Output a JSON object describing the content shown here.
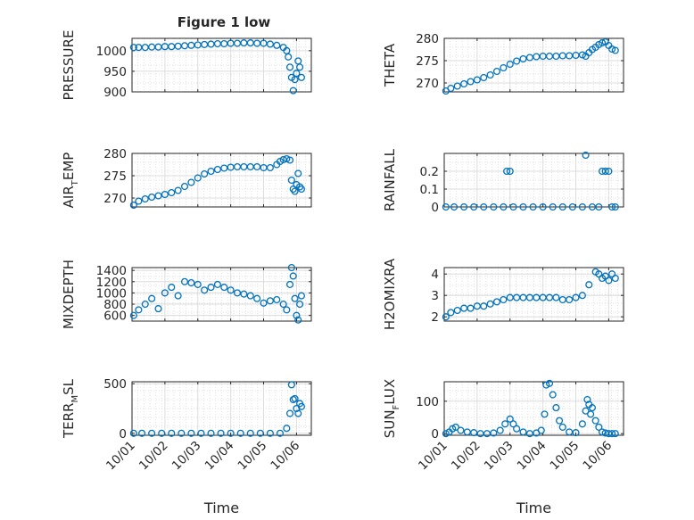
{
  "figure": {
    "title": "Figure 1 low",
    "marker_color": "#0072BD"
  },
  "chart_data": [
    {
      "type": "scatter",
      "ylabel_parts": [
        "PRESSURE"
      ],
      "ylim": [
        900,
        1030
      ],
      "yticks": [
        900,
        950,
        1000
      ],
      "title": "Figure 1 low",
      "xlabel": "",
      "grid": true,
      "x": [
        0.05,
        0.2,
        0.4,
        0.6,
        0.8,
        1.0,
        1.2,
        1.4,
        1.6,
        1.8,
        2.0,
        2.2,
        2.4,
        2.6,
        2.8,
        3.0,
        3.2,
        3.4,
        3.6,
        3.8,
        4.0,
        4.2,
        4.4,
        4.6,
        4.7,
        4.75,
        4.8,
        4.85,
        4.9,
        4.95,
        5.0,
        5.05,
        5.1,
        5.15
      ],
      "y": [
        1008,
        1008,
        1008,
        1009,
        1009,
        1010,
        1010,
        1011,
        1012,
        1013,
        1014,
        1015,
        1016,
        1017,
        1017,
        1018,
        1018,
        1019,
        1019,
        1018,
        1018,
        1016,
        1013,
        1008,
        1000,
        985,
        960,
        935,
        903,
        930,
        945,
        975,
        960,
        935
      ]
    },
    {
      "type": "scatter",
      "ylabel_parts": [
        "THETA"
      ],
      "ylim": [
        268,
        280
      ],
      "yticks": [
        270,
        275,
        280
      ],
      "xlabel": "",
      "grid": true,
      "x": [
        0.05,
        0.2,
        0.4,
        0.6,
        0.8,
        1.0,
        1.2,
        1.4,
        1.6,
        1.8,
        2.0,
        2.2,
        2.4,
        2.6,
        2.8,
        3.0,
        3.2,
        3.4,
        3.6,
        3.8,
        4.0,
        4.2,
        4.3,
        4.4,
        4.5,
        4.6,
        4.7,
        4.8,
        4.9,
        5.0,
        5.1,
        5.2
      ],
      "y": [
        268.2,
        268.8,
        269.3,
        269.8,
        270.3,
        270.7,
        271.2,
        271.8,
        272.6,
        273.4,
        274.2,
        274.9,
        275.4,
        275.7,
        275.9,
        276.0,
        276.0,
        276.0,
        276.1,
        276.1,
        276.2,
        276.3,
        276.0,
        276.8,
        277.5,
        278.0,
        278.6,
        279.0,
        279.2,
        278.4,
        277.6,
        277.3
      ]
    },
    {
      "type": "scatter",
      "ylabel_parts": [
        "AIR",
        "T",
        "EMP"
      ],
      "ylim": [
        268,
        280
      ],
      "yticks": [
        270,
        275,
        280
      ],
      "xlabel": "",
      "grid": true,
      "x": [
        0.05,
        0.2,
        0.4,
        0.6,
        0.8,
        1.0,
        1.2,
        1.4,
        1.6,
        1.8,
        2.0,
        2.2,
        2.4,
        2.6,
        2.8,
        3.0,
        3.2,
        3.4,
        3.6,
        3.8,
        4.0,
        4.2,
        4.4,
        4.5,
        4.6,
        4.7,
        4.8,
        4.85,
        4.9,
        4.95,
        5.0,
        5.05,
        5.1,
        5.15
      ],
      "y": [
        268.4,
        269.3,
        269.8,
        270.2,
        270.5,
        270.8,
        271.2,
        271.7,
        272.6,
        273.5,
        274.5,
        275.4,
        276.0,
        276.4,
        276.7,
        276.9,
        277.0,
        277.0,
        277.0,
        277.0,
        276.8,
        276.8,
        277.5,
        278.2,
        278.6,
        278.8,
        278.5,
        274.0,
        272.0,
        271.5,
        273.0,
        275.5,
        272.5,
        272.0
      ]
    },
    {
      "type": "scatter",
      "ylabel_parts": [
        "RAINFALL"
      ],
      "ylim": [
        0,
        0.3
      ],
      "yticks": [
        0,
        0.1,
        0.2
      ],
      "xlabel": "",
      "grid": true,
      "x": [
        0.05,
        0.3,
        0.6,
        0.9,
        1.2,
        1.5,
        1.8,
        1.9,
        2.0,
        2.1,
        2.4,
        2.7,
        3.0,
        3.3,
        3.6,
        3.9,
        4.2,
        4.3,
        4.5,
        4.7,
        4.8,
        4.9,
        5.0,
        5.1,
        5.2
      ],
      "y": [
        0,
        0,
        0,
        0,
        0,
        0,
        0,
        0.2,
        0.2,
        0,
        0,
        0,
        0,
        0,
        0,
        0,
        0,
        0.29,
        0,
        0,
        0.2,
        0.2,
        0.2,
        0,
        0
      ]
    },
    {
      "type": "scatter",
      "ylabel_parts": [
        "MIXDEPTH"
      ],
      "ylim": [
        500,
        1450
      ],
      "yticks": [
        600,
        800,
        1000,
        1200,
        1400
      ],
      "xlabel": "",
      "grid": true,
      "x": [
        0.05,
        0.2,
        0.4,
        0.6,
        0.8,
        1.0,
        1.2,
        1.4,
        1.6,
        1.8,
        2.0,
        2.2,
        2.4,
        2.6,
        2.8,
        3.0,
        3.2,
        3.4,
        3.6,
        3.8,
        4.0,
        4.2,
        4.4,
        4.6,
        4.7,
        4.8,
        4.85,
        4.9,
        4.95,
        5.0,
        5.05,
        5.1,
        5.15
      ],
      "y": [
        600,
        700,
        800,
        900,
        720,
        1000,
        1100,
        950,
        1200,
        1180,
        1150,
        1050,
        1100,
        1150,
        1100,
        1050,
        1000,
        980,
        950,
        900,
        820,
        860,
        880,
        800,
        700,
        1150,
        1450,
        1300,
        900,
        600,
        520,
        800,
        950
      ]
    },
    {
      "type": "scatter",
      "ylabel_parts": [
        "H2OMIXRA"
      ],
      "ylim": [
        1.8,
        4.3
      ],
      "yticks": [
        2,
        3,
        4
      ],
      "xlabel": "",
      "grid": true,
      "x": [
        0.05,
        0.2,
        0.4,
        0.6,
        0.8,
        1.0,
        1.2,
        1.4,
        1.6,
        1.8,
        2.0,
        2.2,
        2.4,
        2.6,
        2.8,
        3.0,
        3.2,
        3.4,
        3.6,
        3.8,
        4.0,
        4.2,
        4.4,
        4.6,
        4.7,
        4.8,
        4.9,
        5.0,
        5.1,
        5.2
      ],
      "y": [
        2.0,
        2.2,
        2.3,
        2.4,
        2.4,
        2.5,
        2.5,
        2.6,
        2.7,
        2.8,
        2.9,
        2.9,
        2.9,
        2.9,
        2.9,
        2.9,
        2.9,
        2.9,
        2.8,
        2.8,
        2.9,
        3.0,
        3.5,
        4.1,
        4.0,
        3.8,
        3.9,
        3.7,
        4.0,
        3.8
      ]
    },
    {
      "type": "scatter",
      "ylabel_parts": [
        "TERR",
        "M",
        "SL"
      ],
      "ylim": [
        -20,
        520
      ],
      "yticks": [
        0,
        500
      ],
      "xlabel": "Time",
      "xticks": [
        "10/01",
        "10/02",
        "10/03",
        "10/04",
        "10/05",
        "10/06"
      ],
      "grid": true,
      "x": [
        0.05,
        0.3,
        0.6,
        0.9,
        1.2,
        1.5,
        1.8,
        2.1,
        2.4,
        2.7,
        3.0,
        3.3,
        3.6,
        3.9,
        4.2,
        4.5,
        4.7,
        4.8,
        4.85,
        4.9,
        4.95,
        5.0,
        5.05,
        5.1,
        5.15
      ],
      "y": [
        0,
        0,
        0,
        0,
        0,
        0,
        0,
        0,
        0,
        0,
        0,
        0,
        0,
        0,
        0,
        0,
        50,
        200,
        490,
        340,
        350,
        250,
        200,
        300,
        270
      ]
    },
    {
      "type": "scatter",
      "ylabel_parts": [
        "SUN",
        "F",
        "LUX"
      ],
      "ylim": [
        -5,
        160
      ],
      "yticks": [
        0,
        100
      ],
      "xlabel": "Time",
      "xticks": [
        "10/01",
        "10/02",
        "10/03",
        "10/04",
        "10/05",
        "10/06"
      ],
      "grid": true,
      "x": [
        0.05,
        0.15,
        0.25,
        0.35,
        0.5,
        0.7,
        0.9,
        1.1,
        1.3,
        1.5,
        1.7,
        1.85,
        2.0,
        2.1,
        2.2,
        2.4,
        2.6,
        2.8,
        2.95,
        3.05,
        3.1,
        3.2,
        3.3,
        3.4,
        3.5,
        3.6,
        3.8,
        4.0,
        4.2,
        4.3,
        4.35,
        4.4,
        4.45,
        4.5,
        4.6,
        4.7,
        4.8,
        4.9,
        5.0,
        5.1,
        5.2
      ],
      "y": [
        0,
        5,
        15,
        20,
        10,
        5,
        3,
        0,
        0,
        2,
        10,
        30,
        45,
        30,
        15,
        5,
        0,
        2,
        10,
        60,
        150,
        155,
        120,
        80,
        40,
        20,
        5,
        3,
        30,
        70,
        105,
        90,
        60,
        80,
        40,
        20,
        5,
        2,
        0,
        0,
        0
      ]
    }
  ]
}
